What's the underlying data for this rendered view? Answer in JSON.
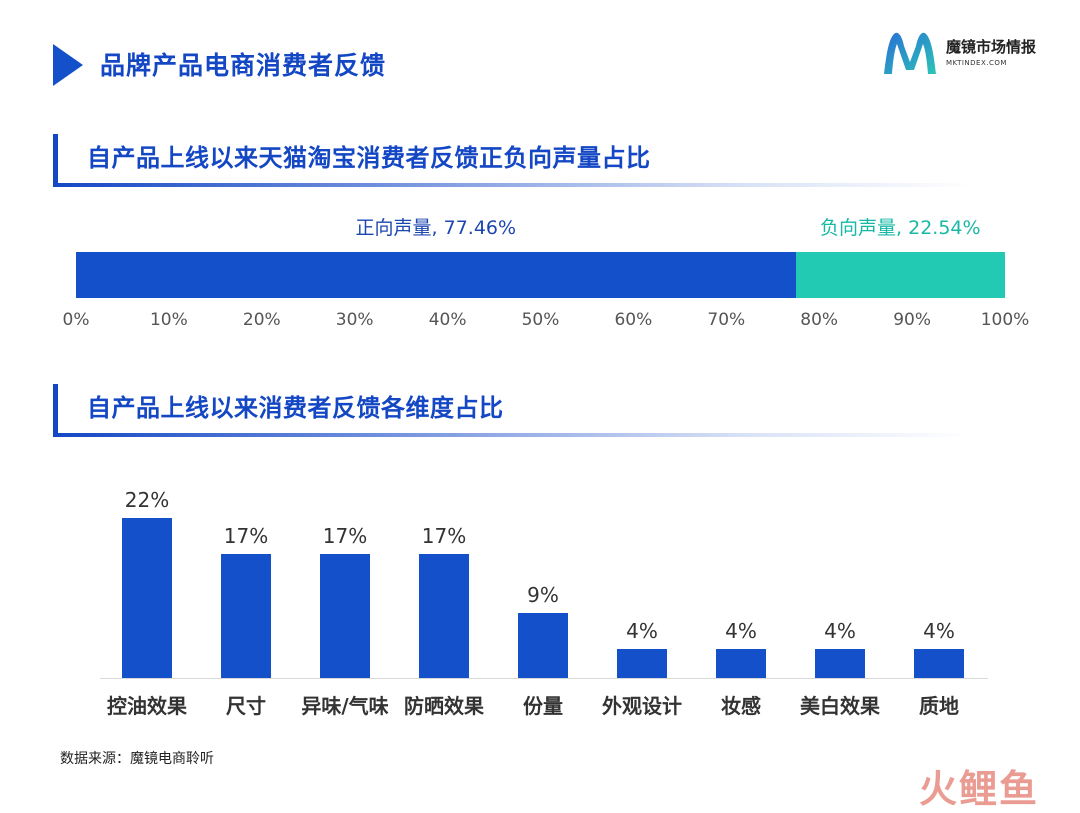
{
  "page": {
    "title": "品牌产品电商消费者反馈",
    "brand_name": "魔镜市场情报",
    "brand_url": "MKTINDEX.COM",
    "source": "数据来源：魔镜电商聆听",
    "watermark": "火鲤鱼"
  },
  "colors": {
    "primary": "#1350c9",
    "positive": "#1447c4",
    "negative": "#22c9b3",
    "title": "#1447c4"
  },
  "chart_data": [
    {
      "type": "bar",
      "orientation": "horizontal-stacked",
      "title": "自产品上线以来天猫淘宝消费者反馈正负向声量占比",
      "series": [
        {
          "name": "正向声量",
          "value": 77.46,
          "label": "正向声量, 77.46%"
        },
        {
          "name": "负向声量",
          "value": 22.54,
          "label": "负向声量, 22.54%"
        }
      ],
      "xlim": [
        0,
        100
      ],
      "ticks": [
        "0%",
        "10%",
        "20%",
        "30%",
        "40%",
        "50%",
        "60%",
        "70%",
        "80%",
        "90%",
        "100%"
      ],
      "grid": false,
      "legend": "none"
    },
    {
      "type": "bar",
      "title": "自产品上线以来消费者反馈各维度占比",
      "categories": [
        "控油效果",
        "尺寸",
        "异味/气味",
        "防晒效果",
        "份量",
        "外观设计",
        "妆感",
        "美白效果",
        "质地"
      ],
      "values": [
        22,
        17,
        17,
        17,
        9,
        4,
        4,
        4,
        4
      ],
      "value_labels": [
        "22%",
        "17%",
        "17%",
        "17%",
        "9%",
        "4%",
        "4%",
        "4%",
        "4%"
      ],
      "ylim": [
        0,
        22
      ],
      "grid": false,
      "legend": "none"
    }
  ]
}
